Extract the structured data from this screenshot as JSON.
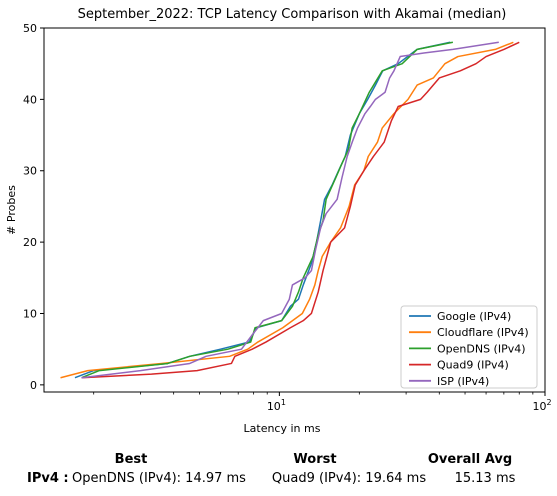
{
  "chart_data": {
    "type": "line",
    "title": "September_2022: TCP Latency Comparison with Akamai (median)",
    "xlabel": "Latency in ms",
    "ylabel": "# Probes",
    "xscale": "log",
    "xlim": [
      1.3,
      100
    ],
    "ylim": [
      -1,
      50
    ],
    "x_ticks": [
      10,
      100
    ],
    "x_tick_labels": [
      "10^1",
      "10^2"
    ],
    "y_ticks": [
      0,
      10,
      20,
      30,
      40,
      50
    ],
    "legend_placement": "lower-right",
    "grid": false,
    "series": [
      {
        "name": "Google (IPv4)",
        "color": "#1f77b4",
        "points": [
          [
            1.7,
            1
          ],
          [
            2.0,
            2
          ],
          [
            3.8,
            3
          ],
          [
            4.6,
            4
          ],
          [
            6.0,
            5
          ],
          [
            7.7,
            6
          ],
          [
            8.2,
            8
          ],
          [
            10.2,
            9
          ],
          [
            11.0,
            11
          ],
          [
            11.8,
            12
          ],
          [
            12.3,
            14
          ],
          [
            13.2,
            17
          ],
          [
            13.8,
            20
          ],
          [
            14.3,
            23
          ],
          [
            14.8,
            26
          ],
          [
            15.8,
            28
          ],
          [
            16.7,
            30
          ],
          [
            17.7,
            32
          ],
          [
            18.5,
            35
          ],
          [
            20.0,
            38
          ],
          [
            21.5,
            40
          ],
          [
            23.0,
            42
          ],
          [
            24.5,
            44
          ],
          [
            28.0,
            45
          ],
          [
            33.0,
            47
          ],
          [
            44.0,
            48
          ]
        ]
      },
      {
        "name": "Cloudflare (IPv4)",
        "color": "#ff7f0e",
        "points": [
          [
            1.5,
            1
          ],
          [
            1.9,
            2
          ],
          [
            3.6,
            3
          ],
          [
            6.5,
            4
          ],
          [
            7.6,
            5
          ],
          [
            8.3,
            6
          ],
          [
            10.3,
            8
          ],
          [
            12.2,
            10
          ],
          [
            13.0,
            12
          ],
          [
            13.6,
            14
          ],
          [
            14.0,
            16
          ],
          [
            14.5,
            18
          ],
          [
            15.6,
            20
          ],
          [
            17.0,
            22
          ],
          [
            18.3,
            25
          ],
          [
            19.2,
            28
          ],
          [
            20.8,
            30
          ],
          [
            21.6,
            32
          ],
          [
            23.4,
            34
          ],
          [
            24.4,
            36
          ],
          [
            27.0,
            38
          ],
          [
            30.5,
            40
          ],
          [
            33.0,
            42
          ],
          [
            38.0,
            43
          ],
          [
            42.0,
            45
          ],
          [
            47.0,
            46
          ],
          [
            65.0,
            47
          ],
          [
            76.0,
            48
          ]
        ]
      },
      {
        "name": "OpenDNS (IPv4)",
        "color": "#2ca02c",
        "points": [
          [
            1.8,
            1
          ],
          [
            2.1,
            2
          ],
          [
            3.8,
            3
          ],
          [
            4.6,
            4
          ],
          [
            6.4,
            5
          ],
          [
            7.8,
            6
          ],
          [
            8.1,
            8
          ],
          [
            10.2,
            9
          ],
          [
            11.2,
            11
          ],
          [
            11.8,
            13
          ],
          [
            12.3,
            15
          ],
          [
            13.4,
            18
          ],
          [
            14.0,
            21
          ],
          [
            14.6,
            23
          ],
          [
            15.0,
            26
          ],
          [
            16.3,
            29
          ],
          [
            17.2,
            31
          ],
          [
            18.2,
            33
          ],
          [
            18.8,
            36
          ],
          [
            20.0,
            38
          ],
          [
            21.8,
            41
          ],
          [
            24.4,
            44
          ],
          [
            29.0,
            45
          ],
          [
            33.0,
            47
          ],
          [
            45.0,
            48
          ]
        ]
      },
      {
        "name": "Quad9 (IPv4)",
        "color": "#d62728",
        "points": [
          [
            1.8,
            1
          ],
          [
            3.3,
            1.5
          ],
          [
            4.9,
            2
          ],
          [
            6.6,
            3
          ],
          [
            6.8,
            4
          ],
          [
            7.9,
            5
          ],
          [
            8.9,
            6
          ],
          [
            11.0,
            8
          ],
          [
            12.3,
            9
          ],
          [
            13.2,
            10
          ],
          [
            14.0,
            13
          ],
          [
            14.6,
            16
          ],
          [
            15.6,
            20
          ],
          [
            17.6,
            22
          ],
          [
            18.5,
            25
          ],
          [
            19.3,
            28
          ],
          [
            20.8,
            30
          ],
          [
            22.6,
            32
          ],
          [
            24.8,
            34
          ],
          [
            26.4,
            37
          ],
          [
            28.0,
            39
          ],
          [
            34.0,
            40
          ],
          [
            36.0,
            41
          ],
          [
            40.0,
            43
          ],
          [
            48.0,
            44
          ],
          [
            55.0,
            45
          ],
          [
            60.0,
            46
          ],
          [
            70.0,
            47
          ],
          [
            80.0,
            48
          ]
        ]
      },
      {
        "name": "ISP (IPv4)",
        "color": "#9467bd",
        "points": [
          [
            1.8,
            1
          ],
          [
            3.0,
            2
          ],
          [
            4.6,
            3
          ],
          [
            5.3,
            4
          ],
          [
            7.2,
            5
          ],
          [
            7.9,
            7
          ],
          [
            8.3,
            8
          ],
          [
            8.7,
            9
          ],
          [
            10.2,
            10
          ],
          [
            10.9,
            12
          ],
          [
            11.2,
            14
          ],
          [
            12.5,
            15
          ],
          [
            13.2,
            16
          ],
          [
            13.7,
            19
          ],
          [
            14.3,
            22
          ],
          [
            15.0,
            24
          ],
          [
            16.5,
            26
          ],
          [
            17.2,
            29
          ],
          [
            18.0,
            32
          ],
          [
            18.8,
            34
          ],
          [
            19.7,
            36
          ],
          [
            21.0,
            38
          ],
          [
            22.0,
            39
          ],
          [
            23.0,
            40
          ],
          [
            25.0,
            41
          ],
          [
            26.0,
            43
          ],
          [
            27.0,
            44
          ],
          [
            28.5,
            46
          ],
          [
            35.0,
            46.5
          ],
          [
            45.0,
            47
          ],
          [
            67.0,
            48
          ]
        ]
      }
    ]
  },
  "summary": {
    "best_header": "Best",
    "worst_header": "Worst",
    "avg_header": "Overall Avg",
    "row_label": "IPv4 :",
    "best": "OpenDNS (IPv4): 14.97 ms",
    "worst": "Quad9 (IPv4): 19.64 ms",
    "avg": "15.13 ms"
  }
}
